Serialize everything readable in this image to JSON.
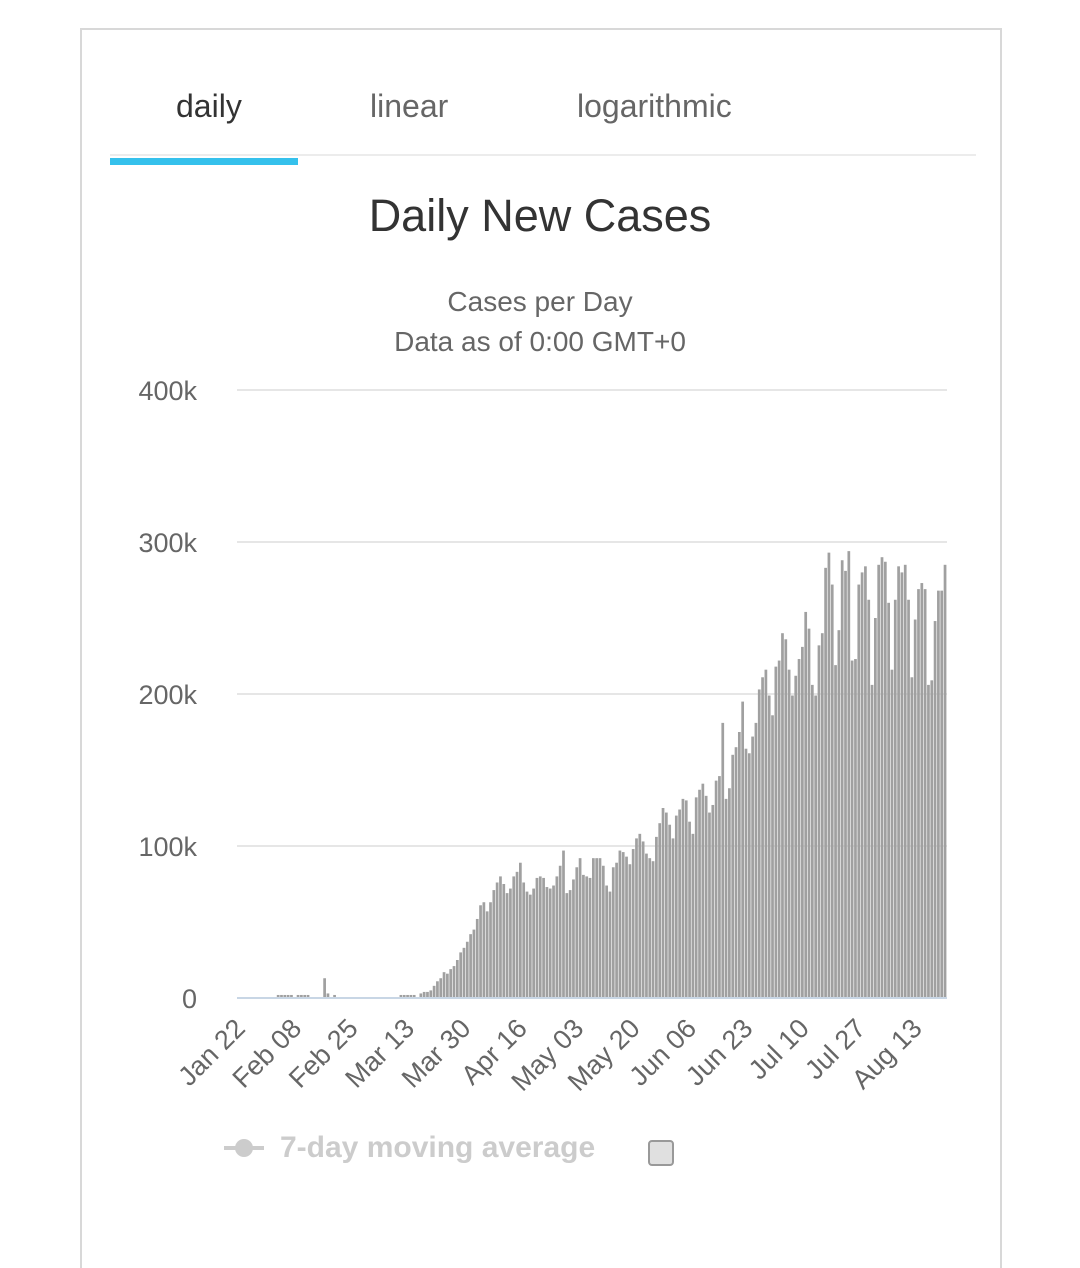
{
  "tabs": [
    {
      "label": "daily",
      "active": true
    },
    {
      "label": "linear",
      "active": false
    },
    {
      "label": "logarithmic",
      "active": false
    }
  ],
  "accent_color": "#35c1ec",
  "legend": {
    "label": "7-day moving average",
    "checked": false,
    "color": "#cccccc"
  },
  "chart_data": {
    "type": "bar",
    "title": "Daily New Cases",
    "subtitle": [
      "Cases per Day",
      "Data as of 0:00 GMT+0"
    ],
    "ylabel": "",
    "xlabel": "",
    "ylim": [
      0,
      400000
    ],
    "yticks": [
      0,
      100000,
      200000,
      300000,
      400000
    ],
    "ytick_labels": [
      "0",
      "100k",
      "200k",
      "300k",
      "400k"
    ],
    "xtick_labels": [
      "Jan 22",
      "Feb 08",
      "Feb 25",
      "Mar 13",
      "Mar 30",
      "Apr 16",
      "May 03",
      "May 20",
      "Jun 06",
      "Jun 23",
      "Jul 10",
      "Jul 27",
      "Aug 13"
    ],
    "start_date": "Jan 22",
    "grid": true,
    "bar_color": "#a0a0a0",
    "values": [
      0,
      0,
      0,
      0,
      0,
      0,
      0,
      0,
      0,
      0,
      0,
      0,
      2000,
      2000,
      2000,
      2000,
      2000,
      0,
      2000,
      2000,
      2000,
      2000,
      0,
      0,
      0,
      0,
      13000,
      3000,
      0,
      2000,
      0,
      0,
      0,
      0,
      0,
      0,
      0,
      0,
      0,
      0,
      0,
      0,
      0,
      0,
      0,
      0,
      0,
      0,
      0,
      2000,
      2000,
      2000,
      2000,
      2000,
      0,
      3000,
      4000,
      4000,
      5000,
      8000,
      11000,
      13000,
      17000,
      16000,
      19000,
      21000,
      25000,
      30000,
      33000,
      37000,
      42000,
      45000,
      52000,
      61000,
      63000,
      57000,
      63000,
      71000,
      76000,
      80000,
      75000,
      69000,
      72000,
      80000,
      83000,
      89000,
      76000,
      70000,
      68000,
      72000,
      79000,
      80000,
      79000,
      73000,
      72000,
      74000,
      80000,
      87000,
      97000,
      69000,
      71000,
      78000,
      86000,
      92000,
      81000,
      80000,
      79000,
      92000,
      92000,
      92000,
      87000,
      74000,
      70000,
      86000,
      89000,
      97000,
      96000,
      93000,
      88000,
      98000,
      105000,
      108000,
      103000,
      95000,
      92000,
      90000,
      106000,
      115000,
      125000,
      122000,
      114000,
      105000,
      120000,
      124000,
      131000,
      130000,
      116000,
      108000,
      132000,
      137000,
      141000,
      133000,
      122000,
      127000,
      143000,
      146000,
      181000,
      131000,
      138000,
      160000,
      165000,
      175000,
      195000,
      164000,
      161000,
      172000,
      181000,
      203000,
      211000,
      216000,
      199000,
      186000,
      218000,
      222000,
      240000,
      236000,
      216000,
      199000,
      212000,
      223000,
      231000,
      254000,
      243000,
      206000,
      199000,
      232000,
      240000,
      283000,
      293000,
      272000,
      219000,
      242000,
      288000,
      281000,
      294000,
      222000,
      223000,
      272000,
      280000,
      284000,
      262000,
      206000,
      250000,
      285000,
      290000,
      287000,
      260000,
      216000,
      262000,
      284000,
      280000,
      285000,
      262000,
      211000,
      249000,
      269000,
      273000,
      269000,
      206000,
      209000,
      248000,
      268000,
      268000,
      285000
    ]
  }
}
